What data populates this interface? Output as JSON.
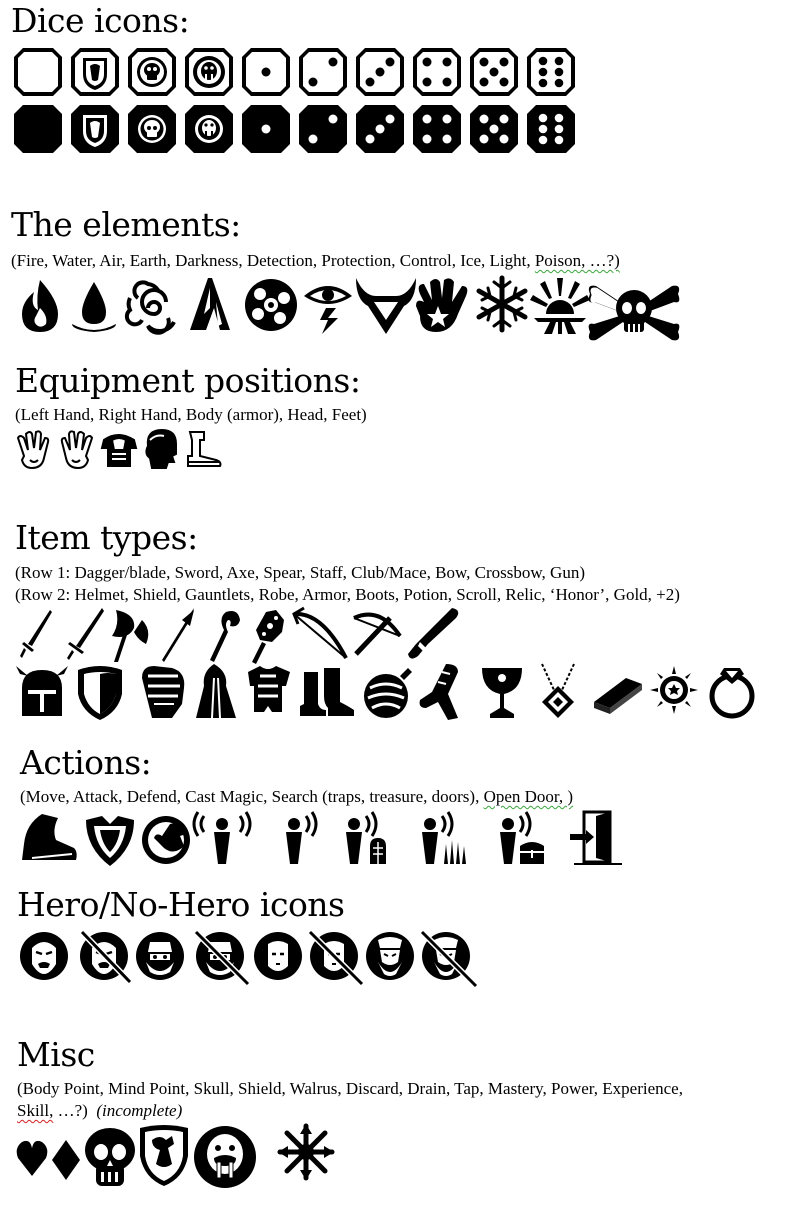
{
  "sections": {
    "dice": {
      "title": "Dice icons:",
      "rows": [
        [
          "blank-die-icon",
          "shield-die-icon",
          "skull-die-icon",
          "walrus-die-icon",
          "die-one-icon",
          "die-two-icon",
          "die-three-icon",
          "die-four-icon",
          "die-five-icon",
          "die-six-icon"
        ],
        [
          "blank-die-icon",
          "shield-die-icon",
          "skull-die-icon",
          "walrus-die-icon",
          "die-one-icon",
          "die-two-icon",
          "die-three-icon",
          "die-four-icon",
          "die-five-icon",
          "die-six-icon"
        ]
      ]
    },
    "elements": {
      "title": "The elements:",
      "subtitle": "(Fire, Water, Air, Earth, Darkness, Detection, Protection, Control, Ice, Light, ",
      "subtitle_wavy": "Poison, …?)",
      "icons": [
        "fire-icon",
        "water-icon",
        "air-icon",
        "earth-icon",
        "darkness-icon",
        "detection-icon",
        "protection-icon",
        "control-icon",
        "ice-icon",
        "light-icon",
        "poison-icon"
      ]
    },
    "equipment": {
      "title": "Equipment positions:",
      "subtitle": "(Left Hand, Right Hand, Body (armor), Head, Feet)",
      "icons": [
        "left-hand-icon",
        "right-hand-icon",
        "body-armor-icon",
        "head-icon",
        "feet-icon"
      ]
    },
    "items": {
      "title": "Item types:",
      "row1_text": "(Row 1: Dagger/blade, Sword, Axe, Spear, Staff, Club/Mace, Bow, Crossbow, Gun)",
      "row2_text": "(Row 2: Helmet, Shield, Gauntlets, Robe, Armor, Boots, Potion, Scroll, Relic, ‘Honor’, Gold, +2)",
      "row1_icons": [
        "dagger-icon",
        "sword-icon",
        "axe-icon",
        "spear-icon",
        "staff-icon",
        "mace-icon",
        "bow-icon",
        "crossbow-icon",
        "gun-icon"
      ],
      "row2_icons": [
        "helmet-icon",
        "shield-icon",
        "gauntlet-icon",
        "robe-icon",
        "armor-icon",
        "boots-icon",
        "potion-icon",
        "scroll-icon",
        "relic-icon",
        "honor-icon",
        "gold-icon",
        "plus-two-icon",
        "ring-icon"
      ]
    },
    "actions": {
      "title": "Actions:",
      "subtitle": "(Move, Attack, Defend, Cast Magic, Search (traps, treasure, doors), ",
      "subtitle_wavy": "Open Door, )",
      "icons": [
        "move-icon",
        "attack-icon",
        "defend-icon",
        "cast-magic-icon",
        "search-icon",
        "search-door-icon",
        "search-traps-icon",
        "search-treasure-icon",
        "open-door-icon"
      ]
    },
    "heroes": {
      "title": "Hero/No-Hero icons",
      "icons": [
        "barbarian-icon",
        "no-barbarian-icon",
        "dwarf-icon",
        "no-dwarf-icon",
        "elf-icon",
        "no-elf-icon",
        "wizard-icon",
        "no-wizard-icon"
      ]
    },
    "misc": {
      "title": "Misc",
      "line1": "(Body Point, Mind Point, Skull, Shield, Walrus, Discard, Drain, Tap, Mastery, Power, Experience,",
      "line2_wavy": "Skill,",
      "line2": " …?)",
      "line2_italic": "(incomplete)",
      "icons": [
        "body-point-icon",
        "mind-point-icon",
        "skull-icon",
        "shield-crest-icon",
        "walrus-icon",
        "chaos-star-icon"
      ]
    }
  }
}
